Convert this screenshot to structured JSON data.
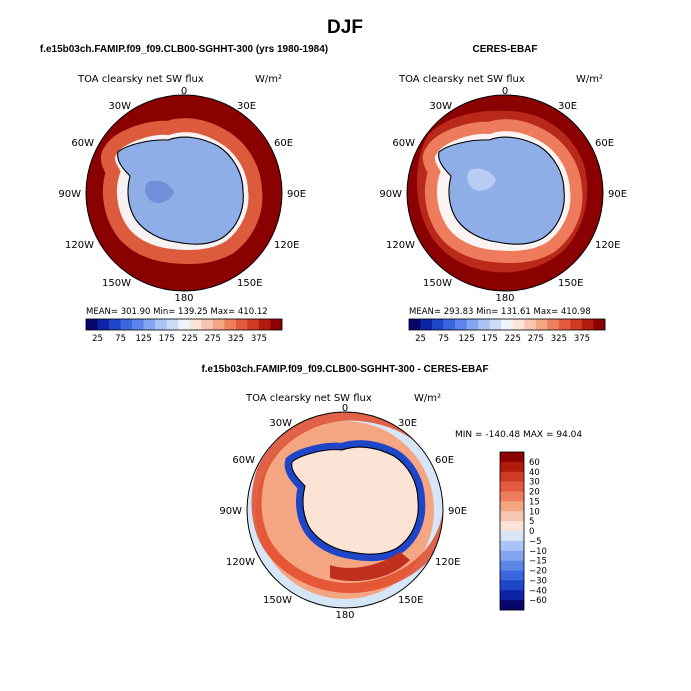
{
  "figure": {
    "title": "DJF"
  },
  "map": {
    "projection": "south-polar-stereographic",
    "lon_labels": [
      "0",
      "30E",
      "60E",
      "90E",
      "120E",
      "150E",
      "180",
      "150W",
      "120W",
      "90W",
      "60W",
      "30W"
    ]
  },
  "colors": {
    "abs_scale": [
      "#08066a",
      "#0d24a6",
      "#1f45c8",
      "#3a66e0",
      "#5c85ea",
      "#84a6f0",
      "#aac4f5",
      "#cbdcf8",
      "#eef3fc",
      "#fbe3d6",
      "#f8c5b0",
      "#f4a582",
      "#ee7f5e",
      "#e45a3e",
      "#cf3a22",
      "#b01c0c",
      "#8b0000"
    ],
    "diff_scale": [
      "#08066a",
      "#0d24a6",
      "#1f45c8",
      "#3a66e0",
      "#5c85ea",
      "#84a6f0",
      "#aac4f5",
      "#d6e6f7",
      "#fbe3d6",
      "#f8c5b0",
      "#f4a582",
      "#ee7f5e",
      "#e45a3e",
      "#cf3a22",
      "#b01c0c",
      "#8b0000"
    ]
  },
  "chart_data": [
    {
      "type": "heatmap",
      "title": "f.e15b03ch.FAMIP.f09_f09.CLB00-SGHHT-300 (yrs 1980-1984)",
      "subtitle": "TOA clearsky net SW flux",
      "units": "W/m²",
      "stats": {
        "mean": 301.9,
        "min": 139.25,
        "max": 410.12
      },
      "stats_text": "MEAN= 301.90    Min= 139.25    Max= 410.12",
      "colorbar": {
        "levels": [
          25,
          50,
          75,
          100,
          125,
          150,
          175,
          200,
          225,
          250,
          275,
          300,
          325,
          350,
          375
        ],
        "tick_labels": [
          "25",
          "75",
          "125",
          "175",
          "225",
          "275",
          "325",
          "375"
        ],
        "orientation": "horizontal"
      }
    },
    {
      "type": "heatmap",
      "title": "CERES-EBAF",
      "subtitle": "TOA clearsky net SW flux",
      "units": "W/m²",
      "stats": {
        "mean": 293.83,
        "min": 131.61,
        "max": 410.98
      },
      "stats_text": "MEAN= 293.83    Min= 131.61    Max= 410.98",
      "colorbar": {
        "levels": [
          25,
          50,
          75,
          100,
          125,
          150,
          175,
          200,
          225,
          250,
          275,
          300,
          325,
          350,
          375
        ],
        "tick_labels": [
          "25",
          "75",
          "125",
          "175",
          "225",
          "275",
          "325",
          "375"
        ],
        "orientation": "horizontal"
      }
    },
    {
      "type": "heatmap",
      "title": "f.e15b03ch.FAMIP.f09_f09.CLB00-SGHHT-300 - CERES-EBAF",
      "subtitle": "TOA clearsky net SW flux",
      "units": "W/m²",
      "stats": {
        "min": -140.48,
        "max": 94.04
      },
      "stats_text": "MIN = -140.48  MAX =  94.04",
      "colorbar": {
        "levels": [
          -60,
          -40,
          -30,
          -20,
          -15,
          -10,
          -5,
          0,
          5,
          10,
          15,
          20,
          30,
          40,
          60
        ],
        "tick_labels": [
          "60",
          "40",
          "30",
          "20",
          "15",
          "10",
          "5",
          "0",
          "−5",
          "−10",
          "−15",
          "−20",
          "−30",
          "−40",
          "−60"
        ],
        "orientation": "vertical"
      }
    }
  ]
}
